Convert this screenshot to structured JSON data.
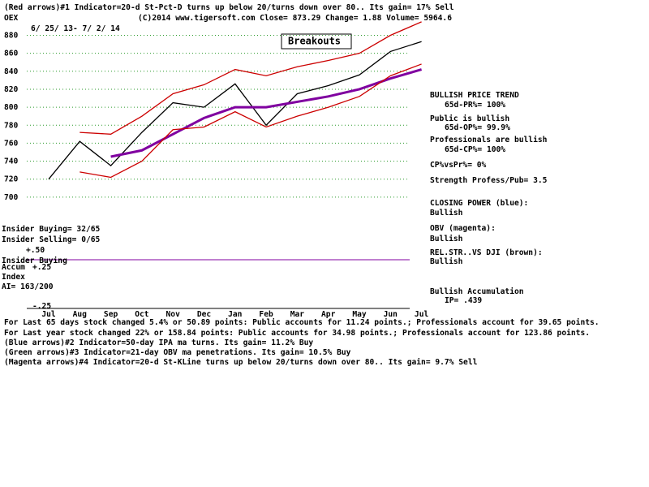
{
  "chart_data": {
    "type": "line",
    "title": "(Red arrows)#1 Indicator=20-d St-Pct-D turns up below 20/turns down over 80.. Its gain= 17% Sell",
    "annotations": [
      "OEX",
      "(C)2014 www.tigersoft.com    Close=  873.29  Change= 1.88 Volume= 5964.6",
      "6/ 25/ 13- 7/ 2/ 14",
      "Breakouts",
      "BULLISH PRICE TREND",
      "65d-PR%= 100%",
      "Public is bullish",
      "65d-OP%= 99.9%",
      "Professionals are bullish",
      "65d-CP%= 100%",
      "CP%vsPr%=  0%",
      "Strength Profess/Pub= 3.5",
      "CLOSING POWER (blue):",
      "Bullish",
      "OBV (magenta):",
      "Bullish",
      "REL.STR..VS DJI (brown):",
      "Bullish",
      "Bullish Accumulation",
      "IP=  .439",
      "Insider Buying= 32/65",
      "Insider Selling= 0/65",
      "+.50",
      "Insider Buying",
      "Accum",
      "+.25",
      "Index",
      "AI= 163/200",
      "-.25",
      "For Last 65 days stock changed  5.4% or  50.89 points:  Public accounts for  11.24 points.;  Professionals account for  39.65 points.",
      "For Last year stock changed  22% or  158.84 points:  Public accounts for  34.98 points.;  Professionals account for  123.86 points.",
      "(Blue arrows)#2 Indicator=50-day IPA ma turns. Its gain= 11.2% Buy",
      "(Green arrows)#3 Indicator=21-day OBV ma penetrations. Its gain= 10.5% Buy",
      "(Magenta arrows)#4 Indicator=20-d St-KLine turns up below 20/turns down over 80.. Its gain= 9.7% Sell"
    ],
    "categories": [
      "Jul",
      "Aug",
      "Sep",
      "Oct",
      "Nov",
      "Dec",
      "Jan",
      "Feb",
      "Mar",
      "Apr",
      "May",
      "Jun",
      "Jul"
    ],
    "series": [
      {
        "color": "#000000",
        "values": [
          720,
          762,
          735,
          772,
          805,
          800,
          826,
          780,
          815,
          824,
          836,
          862,
          873
        ]
      },
      {
        "color": "#8000a0",
        "values": [
          null,
          null,
          745,
          752,
          770,
          788,
          800,
          800,
          806,
          812,
          820,
          832,
          842
        ]
      },
      {
        "color": "#cc0000",
        "values": [
          null,
          772,
          770,
          790,
          815,
          825,
          842,
          835,
          845,
          852,
          860,
          880,
          895
        ]
      },
      {
        "color": "#cc0000",
        "values": [
          null,
          728,
          722,
          740,
          775,
          778,
          795,
          778,
          790,
          800,
          812,
          835,
          848
        ]
      }
    ],
    "ylim": [
      680,
      894
    ],
    "yticks": [
      700,
      720,
      740,
      760,
      780,
      800,
      820,
      840,
      860,
      880
    ],
    "grid": true
  }
}
